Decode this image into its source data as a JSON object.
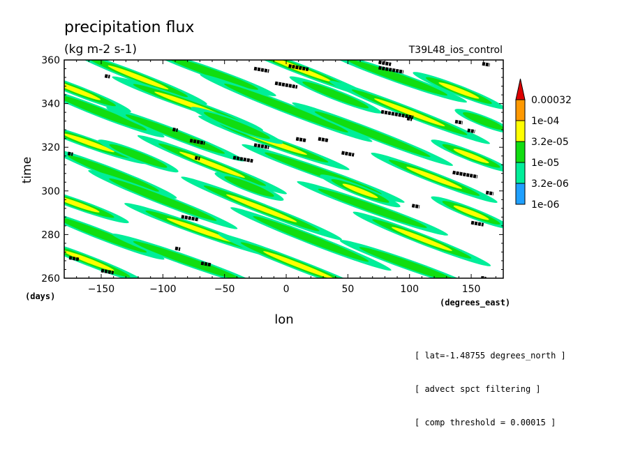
{
  "chart_data": {
    "type": "heatmap",
    "title": "precipitation flux",
    "subtitle": "(kg m-2 s-1)",
    "experiment": "T39L48_ios_control",
    "xlabel": "lon",
    "x_units": "(degrees_east)",
    "ylabel": "time",
    "y_units": "(days)",
    "xlim": [
      -180,
      176
    ],
    "ylim": [
      260,
      360
    ],
    "x_ticks": [
      -150,
      -100,
      -50,
      0,
      50,
      100,
      150
    ],
    "y_ticks": [
      260,
      280,
      300,
      320,
      340,
      360
    ],
    "x_tick_labels": [
      "−150",
      "−100",
      "−50",
      "0",
      "50",
      "100",
      "150"
    ],
    "y_tick_labels": [
      "260",
      "280",
      "300",
      "320",
      "340",
      "360"
    ],
    "grid": false,
    "legend_position": "right",
    "colorbar": {
      "levels": [
        "1e-06",
        "3.2e-06",
        "1e-05",
        "3.2e-05",
        "1e-04",
        "0.00032"
      ],
      "colors": [
        "#1fa0ff",
        "#00ee99",
        "#11dd11",
        "#ffff00",
        "#ff9900",
        "#dd0000"
      ],
      "extend_color": "#dd0000"
    },
    "threshold_mark_color": "#000000",
    "bands": [
      {
        "lon": -170,
        "time": 346,
        "slope": -0.22,
        "len": 95,
        "level": 3
      },
      {
        "lon": -120,
        "time": 352,
        "slope": -0.22,
        "len": 120,
        "level": 3
      },
      {
        "lon": -60,
        "time": 354,
        "slope": -0.2,
        "len": 110,
        "level": 2
      },
      {
        "lon": 10,
        "time": 356,
        "slope": -0.22,
        "len": 130,
        "level": 3
      },
      {
        "lon": 90,
        "time": 352,
        "slope": -0.2,
        "len": 120,
        "level": 2
      },
      {
        "lon": 140,
        "time": 346,
        "slope": -0.22,
        "len": 80,
        "level": 3
      },
      {
        "lon": -150,
        "time": 336,
        "slope": -0.22,
        "len": 110,
        "level": 2
      },
      {
        "lon": -80,
        "time": 340,
        "slope": -0.2,
        "len": 130,
        "level": 3
      },
      {
        "lon": 0,
        "time": 338,
        "slope": -0.22,
        "len": 150,
        "level": 2
      },
      {
        "lon": 100,
        "time": 336,
        "slope": -0.22,
        "len": 140,
        "level": 3
      },
      {
        "lon": -160,
        "time": 322,
        "slope": -0.2,
        "len": 100,
        "level": 3
      },
      {
        "lon": -90,
        "time": 326,
        "slope": -0.22,
        "len": 120,
        "level": 2
      },
      {
        "lon": -10,
        "time": 322,
        "slope": -0.2,
        "len": 130,
        "level": 3
      },
      {
        "lon": 70,
        "time": 326,
        "slope": -0.22,
        "len": 140,
        "level": 2
      },
      {
        "lon": 150,
        "time": 316,
        "slope": -0.22,
        "len": 70,
        "level": 3
      },
      {
        "lon": -140,
        "time": 308,
        "slope": -0.22,
        "len": 110,
        "level": 2
      },
      {
        "lon": -60,
        "time": 312,
        "slope": -0.22,
        "len": 130,
        "level": 3
      },
      {
        "lon": 30,
        "time": 308,
        "slope": -0.2,
        "len": 140,
        "level": 2
      },
      {
        "lon": 120,
        "time": 306,
        "slope": -0.22,
        "len": 110,
        "level": 3
      },
      {
        "lon": -170,
        "time": 294,
        "slope": -0.2,
        "len": 90,
        "level": 3
      },
      {
        "lon": -100,
        "time": 296,
        "slope": -0.22,
        "len": 130,
        "level": 2
      },
      {
        "lon": -20,
        "time": 292,
        "slope": -0.22,
        "len": 140,
        "level": 3
      },
      {
        "lon": 70,
        "time": 292,
        "slope": -0.2,
        "len": 130,
        "level": 2
      },
      {
        "lon": 150,
        "time": 290,
        "slope": -0.22,
        "len": 70,
        "level": 3
      },
      {
        "lon": -150,
        "time": 280,
        "slope": -0.22,
        "len": 110,
        "level": 2
      },
      {
        "lon": -70,
        "time": 282,
        "slope": -0.2,
        "len": 130,
        "level": 3
      },
      {
        "lon": 20,
        "time": 278,
        "slope": -0.22,
        "len": 140,
        "level": 2
      },
      {
        "lon": 110,
        "time": 278,
        "slope": -0.22,
        "len": 120,
        "level": 3
      },
      {
        "lon": -160,
        "time": 268,
        "slope": -0.22,
        "len": 100,
        "level": 3
      },
      {
        "lon": -80,
        "time": 268,
        "slope": -0.2,
        "len": 130,
        "level": 2
      },
      {
        "lon": 10,
        "time": 266,
        "slope": -0.22,
        "len": 140,
        "level": 3
      },
      {
        "lon": 100,
        "time": 266,
        "slope": -0.2,
        "len": 120,
        "level": 2
      },
      {
        "lon": -40,
        "time": 330,
        "slope": -0.22,
        "len": 80,
        "level": 2
      },
      {
        "lon": 40,
        "time": 344,
        "slope": -0.22,
        "len": 80,
        "level": 2
      },
      {
        "lon": -120,
        "time": 316,
        "slope": -0.22,
        "len": 70,
        "level": 2
      },
      {
        "lon": 160,
        "time": 332,
        "slope": -0.22,
        "len": 50,
        "level": 2
      },
      {
        "lon": 60,
        "time": 300,
        "slope": -0.22,
        "len": 70,
        "level": 3
      },
      {
        "lon": -30,
        "time": 302,
        "slope": -0.22,
        "len": 60,
        "level": 2
      }
    ],
    "threshold_marks": [
      {
        "lon": -145,
        "time": 352.5,
        "len": 4
      },
      {
        "lon": -20,
        "time": 355.5,
        "len": 12
      },
      {
        "lon": 10,
        "time": 356.5,
        "len": 16
      },
      {
        "lon": 85,
        "time": 355.5,
        "len": 20
      },
      {
        "lon": 80,
        "time": 358.5,
        "len": 10
      },
      {
        "lon": 0,
        "time": 348.5,
        "len": 18
      },
      {
        "lon": 90,
        "time": 335,
        "len": 26
      },
      {
        "lon": 100,
        "time": 333,
        "len": 4
      },
      {
        "lon": 140,
        "time": 331.5,
        "len": 6
      },
      {
        "lon": 150,
        "time": 327.5,
        "len": 6
      },
      {
        "lon": -90,
        "time": 328,
        "len": 4
      },
      {
        "lon": -72,
        "time": 322.5,
        "len": 12
      },
      {
        "lon": -20,
        "time": 320.5,
        "len": 12
      },
      {
        "lon": 12,
        "time": 323.5,
        "len": 8
      },
      {
        "lon": 30,
        "time": 323.5,
        "len": 8
      },
      {
        "lon": 50,
        "time": 317,
        "len": 10
      },
      {
        "lon": -35,
        "time": 314.5,
        "len": 16
      },
      {
        "lon": -175,
        "time": 317,
        "len": 4
      },
      {
        "lon": -72,
        "time": 315,
        "len": 4
      },
      {
        "lon": 145,
        "time": 307.5,
        "len": 20
      },
      {
        "lon": 165,
        "time": 299,
        "len": 6
      },
      {
        "lon": 105,
        "time": 293,
        "len": 6
      },
      {
        "lon": -78,
        "time": 287.5,
        "len": 14
      },
      {
        "lon": 155,
        "time": 285,
        "len": 10
      },
      {
        "lon": -88,
        "time": 273.5,
        "len": 4
      },
      {
        "lon": -172,
        "time": 269,
        "len": 8
      },
      {
        "lon": -65,
        "time": 266.5,
        "len": 8
      },
      {
        "lon": -145,
        "time": 263,
        "len": 10
      },
      {
        "lon": 160,
        "time": 260,
        "len": 4
      },
      {
        "lon": 162,
        "time": 358,
        "len": 6
      }
    ]
  },
  "annotations": [
    "[ lat=-1.48755 degrees_north ]",
    "[ advect spct filtering ]",
    "[ comp threshold = 0.00015 ]"
  ]
}
